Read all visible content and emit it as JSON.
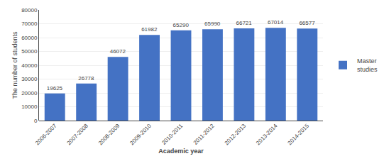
{
  "chart_data": {
    "type": "bar",
    "categories": [
      "2006-2007",
      "2007-2008",
      "2008-2009",
      "2009-2010",
      "2010-2011",
      "2011-2012",
      "2012-2013",
      "2013-2014",
      "2014-2015"
    ],
    "series": [
      {
        "name": "Master\nstudies",
        "color": "#4472c4",
        "values": [
          19625,
          26778,
          46072,
          61982,
          65290,
          65990,
          66721,
          67014,
          66577
        ]
      }
    ],
    "xlabel": "Academic year",
    "ylabel": "The number of students",
    "ylim": [
      0,
      80000
    ],
    "yticks": [
      0,
      10000,
      20000,
      30000,
      40000,
      50000,
      60000,
      70000,
      80000
    ],
    "grid": true,
    "data_labels": true,
    "legend": "right"
  }
}
